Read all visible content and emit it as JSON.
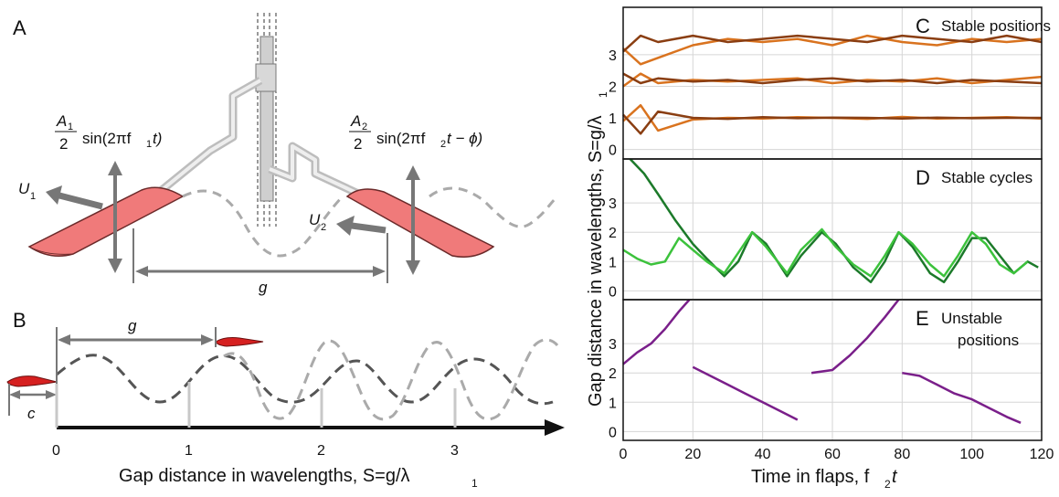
{
  "panels": {
    "a": "A",
    "b": "B",
    "c": "C",
    "d": "D",
    "e": "E"
  },
  "schematic": {
    "left_amp_num": "A",
    "left_amp_sub": "1",
    "left_amp_den": "2",
    "left_amp_sin": "sin(2πf",
    "left_amp_sin_sub": "1",
    "left_amp_tail": "t)",
    "right_amp_num": "A",
    "right_amp_sub": "2",
    "right_amp_den": "2",
    "right_amp_sin": "sin(2πf",
    "right_amp_sin_sub": "2",
    "right_amp_tail": "t − ϕ)",
    "u1": "U",
    "u1_sub": "1",
    "u2": "U",
    "u2_sub": "2",
    "gap": "g",
    "gap_b": "g",
    "chord": "c"
  },
  "wave_axis": {
    "ticks": [
      "0",
      "1",
      "2",
      "3"
    ],
    "label": "Gap distance in wavelengths, S=g/λ",
    "label_sub": "1"
  },
  "chart_data": [
    {
      "type": "line",
      "panel": "C",
      "title": "Stable positions",
      "xlim": [
        0,
        120
      ],
      "ylim": [
        -0.3,
        4.5
      ],
      "yticks": [
        0,
        1,
        2,
        3
      ],
      "series": [
        {
          "color": "#d9731f",
          "x": [
            0,
            5,
            10,
            20,
            30,
            40,
            50,
            60,
            70,
            80,
            90,
            100,
            110,
            120
          ],
          "y": [
            0.9,
            1.4,
            0.6,
            0.95,
            1.0,
            0.98,
            1.02,
            1.0,
            0.97,
            1.03,
            0.98,
            1.0,
            1.02,
            0.98
          ]
        },
        {
          "color": "#8a3e12",
          "x": [
            0,
            5,
            10,
            20,
            30,
            40,
            50,
            60,
            70,
            80,
            90,
            100,
            110,
            120
          ],
          "y": [
            1.1,
            0.5,
            1.2,
            1.0,
            0.97,
            1.02,
            0.99,
            1.01,
            1.0,
            0.98,
            1.01,
            0.99,
            1.0,
            1.0
          ]
        },
        {
          "color": "#d9731f",
          "x": [
            0,
            5,
            10,
            20,
            30,
            40,
            50,
            60,
            70,
            80,
            90,
            100,
            110,
            120
          ],
          "y": [
            2.0,
            2.4,
            2.1,
            2.2,
            2.15,
            2.2,
            2.25,
            2.1,
            2.2,
            2.15,
            2.25,
            2.1,
            2.2,
            2.3
          ]
        },
        {
          "color": "#8a3e12",
          "x": [
            0,
            5,
            10,
            20,
            30,
            40,
            50,
            60,
            70,
            80,
            90,
            100,
            110,
            120
          ],
          "y": [
            2.4,
            2.1,
            2.25,
            2.15,
            2.2,
            2.1,
            2.2,
            2.25,
            2.15,
            2.2,
            2.1,
            2.2,
            2.15,
            2.1
          ]
        },
        {
          "color": "#d9731f",
          "x": [
            0,
            5,
            10,
            20,
            30,
            40,
            50,
            60,
            70,
            80,
            90,
            100,
            110,
            120
          ],
          "y": [
            3.2,
            2.7,
            2.9,
            3.3,
            3.5,
            3.4,
            3.5,
            3.3,
            3.6,
            3.4,
            3.3,
            3.5,
            3.4,
            3.5
          ]
        },
        {
          "color": "#8a3e12",
          "x": [
            0,
            5,
            10,
            20,
            30,
            40,
            50,
            60,
            70,
            80,
            90,
            100,
            110,
            120
          ],
          "y": [
            3.1,
            3.6,
            3.4,
            3.6,
            3.4,
            3.5,
            3.6,
            3.5,
            3.4,
            3.6,
            3.5,
            3.4,
            3.6,
            3.4
          ]
        }
      ]
    },
    {
      "type": "line",
      "panel": "D",
      "title": "Stable cycles",
      "xlim": [
        0,
        120
      ],
      "ylim": [
        -0.3,
        4.5
      ],
      "yticks": [
        0,
        1,
        2,
        3
      ],
      "series": [
        {
          "color": "#1c7a2a",
          "x": [
            2,
            6,
            10,
            15,
            20,
            24,
            29,
            33,
            37,
            41,
            47,
            51,
            57,
            61,
            66,
            71,
            75,
            79,
            83,
            88,
            92,
            96,
            100,
            104,
            108,
            112,
            116,
            119
          ],
          "y": [
            4.5,
            4.0,
            3.3,
            2.4,
            1.6,
            1.1,
            0.5,
            1.0,
            2.0,
            1.6,
            0.5,
            1.2,
            2.0,
            1.6,
            0.8,
            0.3,
            1.0,
            2.0,
            1.5,
            0.6,
            0.3,
            1.0,
            1.8,
            1.8,
            1.2,
            0.6,
            1.0,
            0.8
          ]
        },
        {
          "color": "#3cc23c",
          "x": [
            0,
            4,
            8,
            12,
            16,
            20,
            24,
            29,
            33,
            37,
            41,
            47,
            51,
            57,
            61,
            66,
            71,
            75,
            79,
            83,
            88,
            92,
            96,
            100,
            104,
            108,
            112,
            116
          ],
          "y": [
            1.4,
            1.1,
            0.9,
            1.0,
            1.8,
            1.4,
            1.0,
            0.6,
            1.3,
            2.0,
            1.5,
            0.6,
            1.4,
            2.1,
            1.5,
            0.9,
            0.5,
            1.2,
            2.0,
            1.6,
            0.9,
            0.5,
            1.2,
            2.0,
            1.6,
            0.9,
            0.6,
            1.0
          ]
        }
      ]
    },
    {
      "type": "line",
      "panel": "E",
      "title": "Unstable positions",
      "xlabel": "Time in flaps, f",
      "xlabel_sub": "2",
      "xlabel_tail": "t",
      "ylabel": "Gap distance in wavelengths, S=g/λ",
      "ylabel_sub": "1",
      "xlim": [
        0,
        120
      ],
      "ylim": [
        -0.3,
        4.5
      ],
      "yticks": [
        0,
        1,
        2,
        3
      ],
      "xticks": [
        0,
        20,
        40,
        60,
        80,
        100,
        120
      ],
      "series": [
        {
          "color": "#7a1f8a",
          "x": [
            0,
            4,
            8,
            12,
            16,
            19
          ],
          "y": [
            2.3,
            2.7,
            3.0,
            3.5,
            4.1,
            4.5
          ]
        },
        {
          "color": "#7a1f8a",
          "x": [
            20,
            25,
            30,
            35,
            40,
            45,
            50
          ],
          "y": [
            2.2,
            1.9,
            1.6,
            1.3,
            1.0,
            0.7,
            0.4
          ]
        },
        {
          "color": "#7a1f8a",
          "x": [
            54,
            60,
            65,
            70,
            75,
            79
          ],
          "y": [
            2.0,
            2.1,
            2.6,
            3.2,
            3.9,
            4.5
          ]
        },
        {
          "color": "#7a1f8a",
          "x": [
            80,
            85,
            90,
            95,
            100,
            105,
            110,
            114
          ],
          "y": [
            2.0,
            1.9,
            1.6,
            1.3,
            1.1,
            0.8,
            0.5,
            0.3
          ]
        }
      ]
    }
  ]
}
